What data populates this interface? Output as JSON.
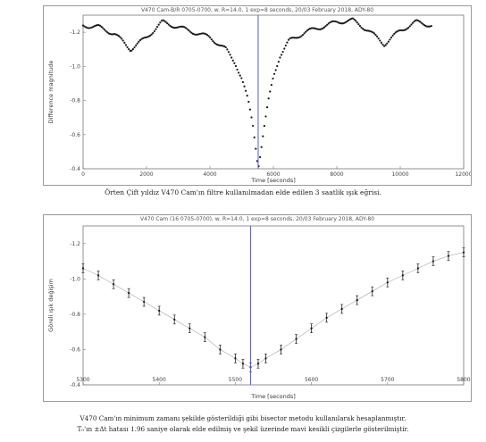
{
  "figure1": {
    "title": "V470 Cam-B/R 0705-0700, w. R=14.0, 1 exp=8 seconds, 20/03 February 2018, ADY-80",
    "caption": "Örten Çift yıldız V470 Cam'ın filtre kullanılmadan elde edilen 3 saatlik ışık eğrisi.",
    "xlabel": "Time [seconds]",
    "ylabel": "Difference magnitude"
  },
  "figure2": {
    "title": "V470 Cam (16 0705-0700), w. R=14.0, 1 exp=8 seconds, 20/03 February 2018, ADY-80",
    "xlabel": "Time [seconds]",
    "ylabel": "Göreli ışık değişim"
  },
  "footer": {
    "line1": "V470 Cam'ın minimum zamanı şekilde gösterildiği gibi bisector metodu kullanılarak hesaplanmıştır.",
    "line2": "T₀'ın ±Δt hatası 1.96 saniye olarak elde edilmiş ve şekil üzerinde mavi kesikli çizgilerle gösterilmiştir."
  },
  "chart_data": [
    {
      "type": "scatter",
      "title": "V470 Cam-B/R 0705-0700, w. R=14.0, 1 exp=8 seconds, 20/03 February 2018, ADY-80",
      "xlabel": "Time [seconds]",
      "ylabel": "Difference magnitude",
      "xlim": [
        0,
        12000
      ],
      "ylim": [
        -0.4,
        -1.3
      ],
      "xticks": [
        0,
        2000,
        4000,
        6000,
        8000,
        10000,
        12000
      ],
      "xtick_labels": [
        "0",
        "2000",
        "4000",
        "6000",
        "8000",
        "10000",
        "12000"
      ],
      "yticks": [
        -1.2,
        -1.0,
        -0.8,
        -0.6,
        -0.4
      ],
      "ytick_labels": [
        "-1.2",
        "-1.0",
        "-0.8",
        "-0.6",
        "-0.4"
      ],
      "vline_x": 5520,
      "series": [
        {
          "x": [
            0,
            500,
            1000,
            1500,
            2000,
            2500,
            3000,
            3500,
            4000,
            4500,
            4800,
            5000,
            5200,
            5350,
            5450,
            5520,
            5600,
            5700,
            5850,
            6000,
            6200,
            6500,
            7000,
            7500,
            8000,
            8500,
            9000,
            9500,
            10000,
            10500,
            11000
          ],
          "y": [
            -1.24,
            -1.23,
            -1.19,
            -1.1,
            -1.17,
            -1.26,
            -1.23,
            -1.2,
            -1.17,
            -1.1,
            -1.02,
            -0.93,
            -0.8,
            -0.66,
            -0.52,
            -0.41,
            -0.5,
            -0.63,
            -0.8,
            -0.94,
            -1.06,
            -1.15,
            -1.2,
            -1.23,
            -1.26,
            -1.27,
            -1.21,
            -1.13,
            -1.21,
            -1.26,
            -1.24
          ]
        }
      ],
      "grid": false
    },
    {
      "type": "scatter",
      "title": "V470 Cam (16 0705-0700), w. R=14.0, 1 exp=8 seconds, 20/03 February 2018, ADY-80",
      "xlabel": "Time [seconds]",
      "ylabel": "Göreli ışık değişim",
      "xlim": [
        5300,
        5800
      ],
      "ylim": [
        -0.4,
        -1.3
      ],
      "xticks": [
        5300,
        5400,
        5500,
        5600,
        5700,
        5800
      ],
      "xtick_labels": [
        "5300",
        "5400",
        "5500",
        "5600",
        "5700",
        "5800"
      ],
      "yticks": [
        -1.2,
        -1.0,
        -0.8,
        -0.6,
        -0.4
      ],
      "ytick_labels": [
        "-1.2",
        "-1.0",
        "-0.8",
        "-0.6",
        "-0.4"
      ],
      "vline_x": 5520,
      "series": [
        {
          "x": [
            5300,
            5320,
            5340,
            5360,
            5380,
            5400,
            5420,
            5440,
            5460,
            5480,
            5500,
            5510,
            5520,
            5530,
            5540,
            5560,
            5580,
            5600,
            5620,
            5640,
            5660,
            5680,
            5700,
            5720,
            5740,
            5760,
            5780,
            5800
          ],
          "y": [
            -1.06,
            -1.02,
            -0.97,
            -0.92,
            -0.87,
            -0.82,
            -0.77,
            -0.72,
            -0.67,
            -0.6,
            -0.55,
            -0.52,
            -0.5,
            -0.52,
            -0.55,
            -0.6,
            -0.66,
            -0.72,
            -0.78,
            -0.83,
            -0.88,
            -0.93,
            -0.98,
            -1.02,
            -1.06,
            -1.1,
            -1.13,
            -1.15
          ]
        }
      ],
      "grid": false
    }
  ]
}
